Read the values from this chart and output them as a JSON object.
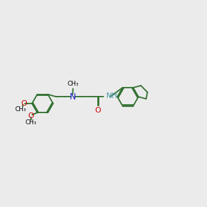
{
  "bg_color": "#ebebeb",
  "bond_color": "#2d6e2d",
  "n_color": "#2222cc",
  "o_color": "#cc0000",
  "nh_color": "#4499aa",
  "text_color": "#000000",
  "line_width": 1.3,
  "font_size": 8.0,
  "xlim": [
    0,
    10
  ],
  "ylim": [
    2,
    8
  ]
}
